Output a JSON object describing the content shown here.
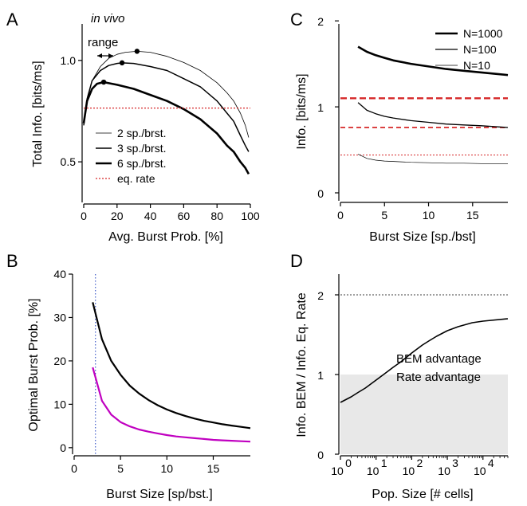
{
  "panels": {
    "A": {
      "label": "A",
      "annotations": {
        "in_vivo": "in vivo",
        "range": "range"
      },
      "colors": {
        "eq_rate": "#d62728"
      },
      "chart_data": {
        "type": "line",
        "xlabel": "Avg. Burst Prob. [%]",
        "ylabel": "Total Info. [bits/ms]",
        "xlim": [
          0,
          100
        ],
        "ylim": [
          0.3,
          1.18
        ],
        "xticks": [
          "0",
          "20",
          "40",
          "60",
          "80",
          "100"
        ],
        "yticks": [
          "0.5",
          "1.0"
        ],
        "legend": [
          "2 sp./brst.",
          "3 sp./brst.",
          "6 sp./brst.",
          "eq. rate"
        ],
        "legend_position": "bottom-left",
        "series": [
          {
            "name": "2 sp./brst.",
            "x": [
              0,
              2,
              5,
              10,
              15,
              20,
              25,
              32,
              40,
              50,
              60,
              70,
              80,
              86,
              90,
              94,
              97,
              99
            ],
            "y": [
              0.68,
              0.8,
              0.9,
              0.97,
              1.01,
              1.03,
              1.04,
              1.045,
              1.04,
              1.02,
              0.99,
              0.95,
              0.89,
              0.84,
              0.8,
              0.74,
              0.68,
              0.62
            ]
          },
          {
            "name": "3 sp./brst.",
            "x": [
              0,
              2,
              5,
              10,
              15,
              20,
              23,
              30,
              40,
              50,
              60,
              70,
              80,
              86,
              90,
              94,
              97,
              99
            ],
            "y": [
              0.68,
              0.81,
              0.9,
              0.95,
              0.975,
              0.985,
              0.988,
              0.985,
              0.97,
              0.95,
              0.91,
              0.87,
              0.8,
              0.74,
              0.7,
              0.63,
              0.58,
              0.55
            ]
          },
          {
            "name": "6 sp./brst.",
            "x": [
              0,
              2,
              5,
              8,
              12,
              20,
              30,
              40,
              50,
              60,
              70,
              80,
              86,
              90,
              94,
              97,
              99
            ],
            "y": [
              0.69,
              0.8,
              0.86,
              0.885,
              0.893,
              0.88,
              0.86,
              0.83,
              0.8,
              0.76,
              0.71,
              0.64,
              0.58,
              0.55,
              0.5,
              0.47,
              0.44
            ]
          },
          {
            "name": "eq. rate",
            "x": [
              0,
              100
            ],
            "y": [
              0.765,
              0.765
            ]
          }
        ],
        "markers": [
          {
            "x": 12,
            "y": 0.893
          },
          {
            "x": 23,
            "y": 0.988
          },
          {
            "x": 32,
            "y": 1.045
          }
        ]
      }
    },
    "B": {
      "label": "B",
      "colors": {
        "magenta": "#c000c0",
        "black": "#000000",
        "vline": "#1f3fbf"
      },
      "chart_data": {
        "type": "line",
        "xlabel": "Burst Size [sp/bst.]",
        "ylabel": "Optimal Burst Prob. [%]",
        "xlim": [
          0,
          19
        ],
        "ylim": [
          -1.5,
          40
        ],
        "xticks": [
          "0",
          "5",
          "10",
          "15"
        ],
        "yticks": [
          "0",
          "10",
          "20",
          "30",
          "40"
        ],
        "vline_x": 2.3,
        "series": [
          {
            "x": [
              2,
              3,
              4,
              5,
              6,
              7,
              8,
              9,
              10,
              11,
              12,
              13,
              14,
              15,
              16,
              17,
              18,
              19
            ],
            "y": [
              33.5,
              25,
              20,
              16.8,
              14.3,
              12.5,
              11,
              9.8,
              8.8,
              8,
              7.3,
              6.7,
              6.2,
              5.8,
              5.4,
              5.1,
              4.8,
              4.5
            ]
          },
          {
            "x": [
              2,
              3,
              4,
              5,
              6,
              7,
              8,
              9,
              10,
              11,
              12,
              13,
              14,
              15,
              16,
              17,
              18,
              19
            ],
            "y": [
              18.5,
              10.8,
              7.6,
              5.9,
              4.9,
              4.2,
              3.7,
              3.3,
              2.9,
              2.6,
              2.4,
              2.2,
              2.0,
              1.8,
              1.7,
              1.6,
              1.5,
              1.4
            ]
          }
        ]
      }
    },
    "C": {
      "label": "C",
      "colors": {
        "eq_rate": "#d62728"
      },
      "chart_data": {
        "type": "line",
        "xlabel": "Burst Size [sp./bst]",
        "ylabel": "Info. [bits/ms]",
        "xlim": [
          0,
          19
        ],
        "ylim": [
          0,
          2.15
        ],
        "xticks": [
          "0",
          "5",
          "10",
          "15"
        ],
        "yticks": [
          "0",
          "1",
          "2"
        ],
        "legend": [
          "N=1000",
          "N=100",
          "N=10"
        ],
        "legend_position": "top-right",
        "series": [
          {
            "name": "N=1000",
            "x": [
              2,
              3,
              4,
              5,
              6,
              8,
              10,
              12,
              14,
              16,
              19
            ],
            "y": [
              1.7,
              1.64,
              1.6,
              1.57,
              1.54,
              1.5,
              1.47,
              1.44,
              1.42,
              1.4,
              1.37
            ]
          },
          {
            "name": "N=100",
            "x": [
              2,
              3,
              4,
              5,
              6,
              8,
              10,
              12,
              14,
              16,
              19
            ],
            "y": [
              1.05,
              0.96,
              0.92,
              0.89,
              0.87,
              0.84,
              0.82,
              0.8,
              0.79,
              0.78,
              0.76
            ]
          },
          {
            "name": "N=10",
            "x": [
              2,
              3,
              4,
              5,
              6,
              8,
              10,
              12,
              14,
              16,
              19
            ],
            "y": [
              0.45,
              0.4,
              0.38,
              0.37,
              0.365,
              0.355,
              0.35,
              0.345,
              0.345,
              0.34,
              0.34
            ]
          }
        ],
        "hlines": [
          {
            "y": 1.1,
            "style": "thick-dashed"
          },
          {
            "y": 0.76,
            "style": "medium-dashed"
          },
          {
            "y": 0.44,
            "style": "thin-dotted"
          }
        ]
      }
    },
    "D": {
      "label": "D",
      "annotations": {
        "bem_advantage": "BEM advantage",
        "rate_advantage": "Rate advantage"
      },
      "colors": {
        "shade": "#e8e8e8"
      },
      "chart_data": {
        "type": "line",
        "xlabel": "Pop. Size [# cells]",
        "ylabel": "Info. BEM / Info. Eq. Rate",
        "xscale": "log",
        "xlim": [
          1,
          50000
        ],
        "ylim": [
          0,
          2.2
        ],
        "xticks": [
          {
            "base": "10",
            "exp": "0"
          },
          {
            "base": "10",
            "exp": "1"
          },
          {
            "base": "10",
            "exp": "2"
          },
          {
            "base": "10",
            "exp": "3"
          },
          {
            "base": "10",
            "exp": "4"
          }
        ],
        "yticks": [
          "0",
          "1",
          "2"
        ],
        "hline": 2,
        "series": [
          {
            "x": [
              1,
              2,
              3,
              5,
              10,
              20,
              30,
              50,
              100,
              200,
              300,
              500,
              1000,
              2000,
              5000,
              10000,
              50000
            ],
            "y": [
              0.65,
              0.72,
              0.77,
              0.83,
              0.93,
              1.03,
              1.09,
              1.16,
              1.27,
              1.37,
              1.42,
              1.48,
              1.55,
              1.6,
              1.65,
              1.67,
              1.7
            ]
          }
        ]
      }
    }
  }
}
